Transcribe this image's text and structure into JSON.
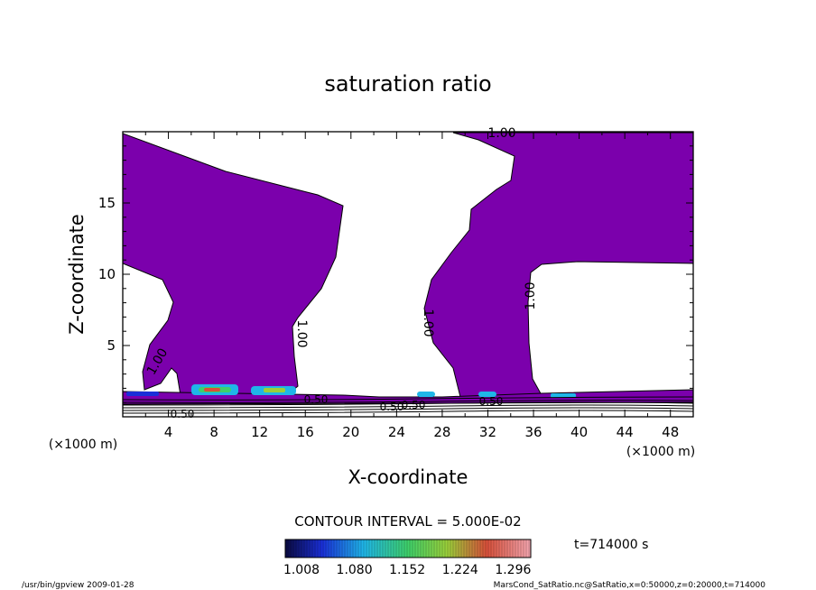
{
  "chart_data": {
    "type": "contour",
    "title": "saturation ratio",
    "xlabel": "X-coordinate",
    "ylabel": "Z-coordinate",
    "x_unit": "(×1000 m)",
    "y_unit": "(×1000 m)",
    "xlim": [
      0,
      50
    ],
    "ylim": [
      0,
      20
    ],
    "x_ticks": [
      4,
      8,
      12,
      16,
      20,
      24,
      28,
      32,
      36,
      40,
      44,
      48
    ],
    "y_ticks": [
      5,
      10,
      15
    ],
    "contour_labels": [
      "1.00",
      "1.00",
      "1.00",
      "1.00",
      "1.00",
      "0.50",
      "0.50",
      "0.50",
      "0.50",
      "0.50"
    ],
    "contour_interval_text": "CONTOUR INTERVAL = 5.000E-02",
    "colorbar": {
      "ticks": [
        "1.008",
        "1.080",
        "1.152",
        "1.224",
        "1.296"
      ],
      "min": 1.008,
      "max": 1.296
    },
    "fill_color": "#7b00ac",
    "time_label": "t=714000  s",
    "footer_left": "/usr/bin/gpview  2009-01-28",
    "footer_right": "MarsCond_SatRatio.nc@SatRatio,x=0:50000,z=0:20000,t=714000"
  }
}
